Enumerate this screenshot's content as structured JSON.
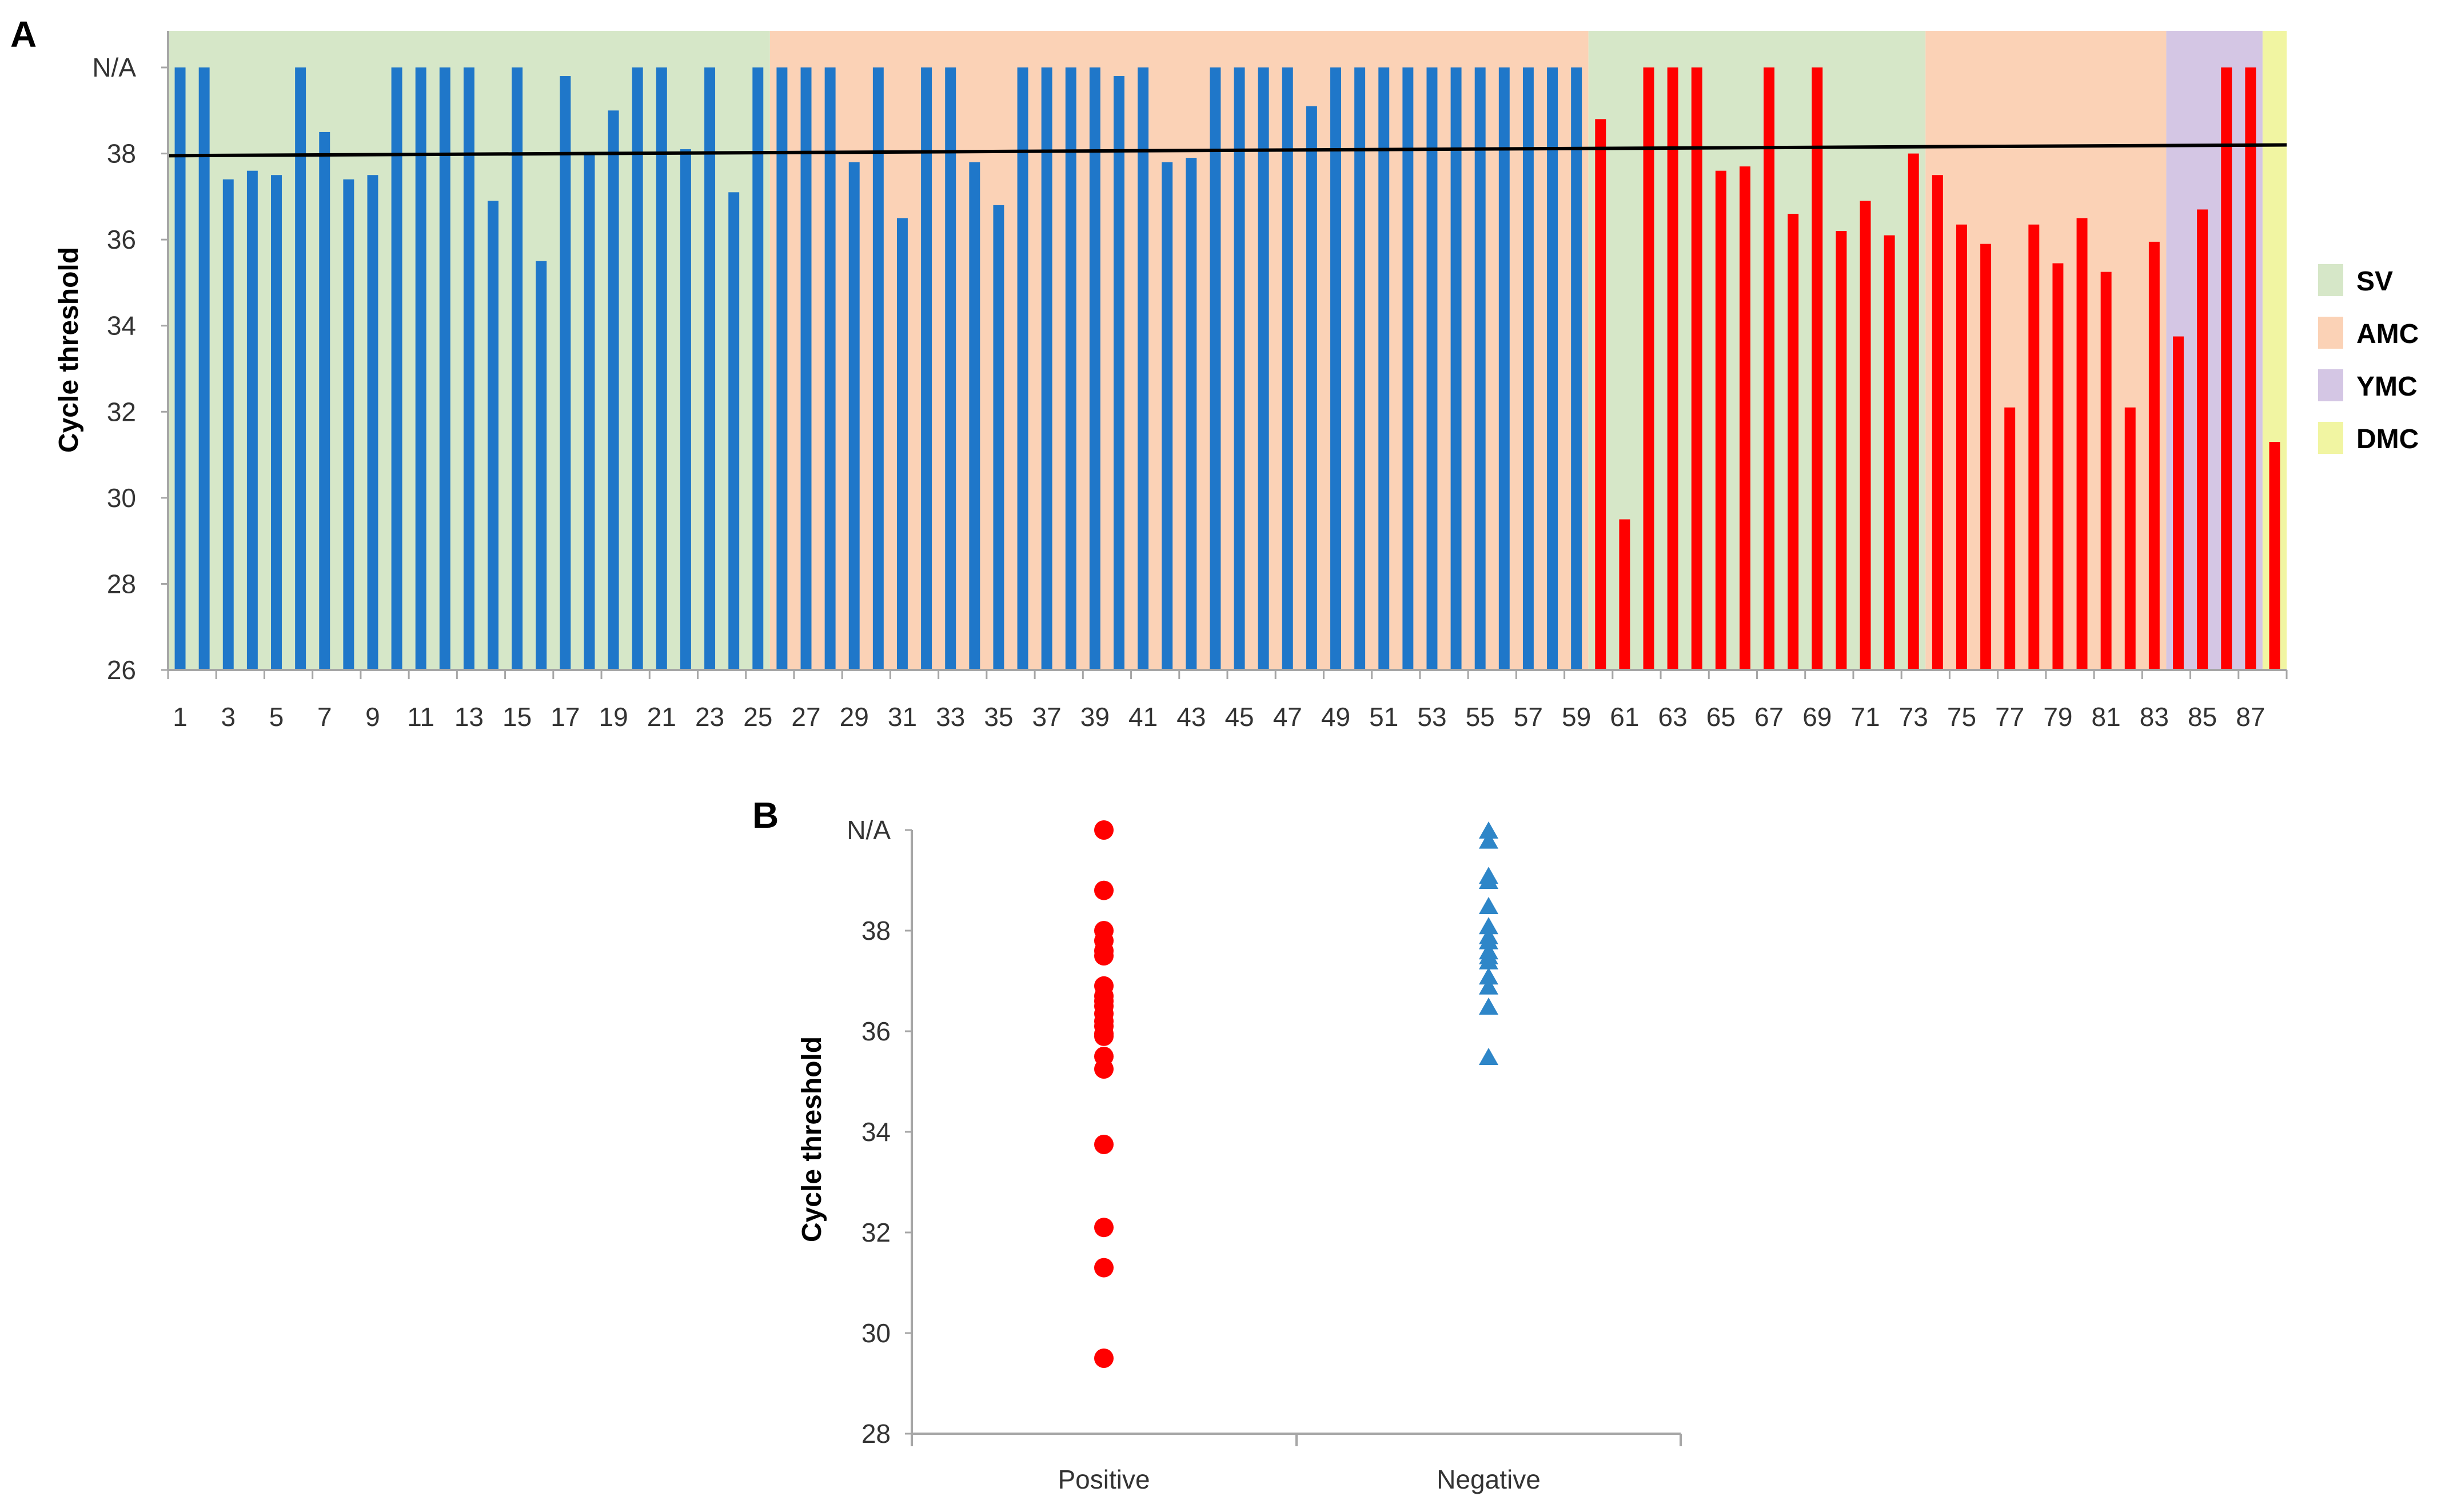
{
  "panel_a": {
    "label": "A",
    "chart_data": {
      "type": "bar",
      "ylabel": "Cycle threshold",
      "yticks": [
        "N/A",
        "38",
        "36",
        "34",
        "32",
        "30",
        "28",
        "26"
      ],
      "ylim": [
        26,
        40
      ],
      "na_value": 40,
      "cutoff_line": {
        "start": 37.95,
        "end": 38.2,
        "color": "#000000"
      },
      "categories": [
        "1",
        "2",
        "3",
        "4",
        "5",
        "6",
        "7",
        "8",
        "9",
        "10",
        "11",
        "12",
        "13",
        "14",
        "15",
        "16",
        "17",
        "18",
        "19",
        "20",
        "21",
        "22",
        "23",
        "24",
        "25",
        "26",
        "27",
        "28",
        "29",
        "30",
        "31",
        "32",
        "33",
        "34",
        "35",
        "36",
        "37",
        "38",
        "39",
        "40",
        "41",
        "42",
        "43",
        "44",
        "45",
        "46",
        "47",
        "48",
        "49",
        "50",
        "51",
        "52",
        "53",
        "54",
        "55",
        "56",
        "57",
        "58",
        "59",
        "60",
        "61",
        "62",
        "63",
        "64",
        "65",
        "66",
        "67",
        "68",
        "69",
        "70",
        "71",
        "72",
        "73",
        "74",
        "75",
        "76",
        "77",
        "78",
        "79",
        "80",
        "81",
        "82",
        "83",
        "84",
        "85",
        "86",
        "87",
        "88"
      ],
      "xtick_labels": [
        "1",
        "3",
        "5",
        "7",
        "9",
        "11",
        "13",
        "15",
        "17",
        "19",
        "21",
        "23",
        "25",
        "27",
        "29",
        "31",
        "33",
        "35",
        "37",
        "39",
        "41",
        "43",
        "45",
        "47",
        "49",
        "51",
        "53",
        "55",
        "57",
        "59",
        "61",
        "63",
        "65",
        "67",
        "69",
        "71",
        "73",
        "75",
        "77",
        "79",
        "81",
        "83",
        "85",
        "87"
      ],
      "values": [
        40,
        40,
        37.4,
        37.6,
        37.5,
        40,
        38.5,
        37.4,
        37.5,
        40,
        40,
        40,
        40,
        36.9,
        40,
        35.5,
        39.8,
        38,
        39,
        40,
        40,
        38.1,
        40,
        37.1,
        40,
        40,
        40,
        40,
        37.8,
        40,
        36.5,
        40,
        40,
        37.8,
        36.8,
        40,
        40,
        40,
        40,
        39.8,
        40,
        37.8,
        37.9,
        40,
        40,
        40,
        40,
        39.1,
        40,
        40,
        40,
        40,
        40,
        40,
        40,
        40,
        40,
        40,
        40,
        38.8,
        29.5,
        40,
        40,
        40,
        37.6,
        37.7,
        40,
        36.6,
        40,
        36.2,
        36.9,
        36.1,
        38,
        37.5,
        36.35,
        35.9,
        32.1,
        36.35,
        35.45,
        36.5,
        35.25,
        32.1,
        35.95,
        33.75,
        36.7,
        40,
        40,
        31.3
      ],
      "bar_colors": {
        "negative": "#1f77c9",
        "positive": "#ff0000"
      },
      "positive_start_index": 59,
      "regions": [
        {
          "name": "SV",
          "from": 1,
          "to": 25,
          "color": "#d6e7c8"
        },
        {
          "name": "AMC",
          "from": 26,
          "to": 59,
          "color": "#fbd2b6"
        },
        {
          "name": "SV",
          "from": 60,
          "to": 73,
          "color": "#d6e7c8"
        },
        {
          "name": "AMC",
          "from": 74,
          "to": 83,
          "color": "#fbd2b6"
        },
        {
          "name": "YMC",
          "from": 84,
          "to": 87,
          "color": "#d4c6e4"
        },
        {
          "name": "DMC",
          "from": 88,
          "to": 88,
          "color": "#f1f5a2"
        }
      ],
      "legend": [
        {
          "label": "SV",
          "color": "#d6e7c8"
        },
        {
          "label": "AMC",
          "color": "#fbd2b6"
        },
        {
          "label": "YMC",
          "color": "#d4c6e4"
        },
        {
          "label": "DMC",
          "color": "#f1f5a2"
        }
      ]
    }
  },
  "panel_b": {
    "label": "B",
    "chart_data": {
      "type": "scatter",
      "ylabel": "Cycle threshold",
      "yticks": [
        "N/A",
        "38",
        "36",
        "34",
        "32",
        "30",
        "28"
      ],
      "ylim": [
        28,
        40
      ],
      "categories": [
        "Positive",
        "Negative"
      ],
      "series": [
        {
          "name": "Positive",
          "marker": "circle",
          "color": "#ff0000",
          "values": [
            40,
            38.8,
            38,
            37.8,
            37.6,
            37.5,
            36.9,
            36.7,
            36.6,
            36.5,
            36.35,
            36.2,
            36.1,
            35.95,
            35.9,
            35.5,
            35.25,
            33.75,
            32.1,
            31.3,
            29.5
          ]
        },
        {
          "name": "Negative",
          "marker": "triangle",
          "color": "#2e86c8",
          "values": [
            40,
            39.8,
            39.1,
            39,
            38.5,
            38.1,
            37.9,
            37.8,
            37.6,
            37.5,
            37.4,
            37.1,
            36.9,
            36.5,
            35.5
          ]
        }
      ]
    }
  }
}
